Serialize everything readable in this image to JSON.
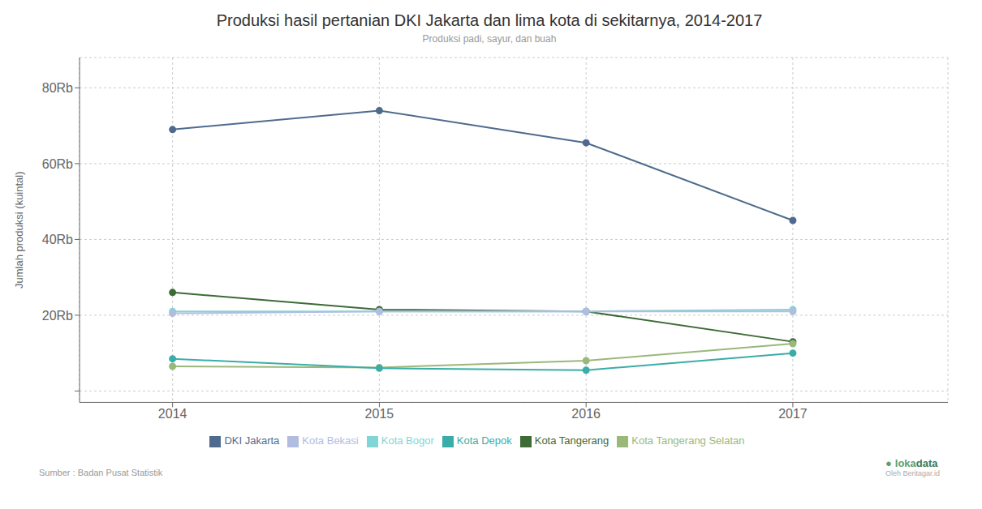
{
  "chart_data": {
    "type": "line",
    "title": "Produksi hasil pertanian DKI Jakarta dan lima kota di sekitarnya, 2014-2017",
    "subtitle": "Produksi padi, sayur, dan buah",
    "y_label": "Jumlah produksi (kuintal)",
    "annotations": [
      "Sumber : Badan Pusat Statistik",
      "●",
      "loka",
      "data",
      "Oleh Beritagar.id"
    ],
    "x": [
      2014,
      2015,
      2016,
      2017
    ],
    "series": [
      {
        "name": "DKI Jakarta",
        "color": "#4e6b8e",
        "values": [
          69000,
          74000,
          65500,
          45000
        ]
      },
      {
        "name": "Kota Tangerang",
        "color": "#3d6b36",
        "values": [
          26000,
          21500,
          21000,
          13000
        ]
      },
      {
        "name": "Kota Tangerang Selatan",
        "color": "#9ab87a",
        "values": [
          6500,
          6200,
          8000,
          12500
        ]
      },
      {
        "name": "Kota Depok",
        "color": "#3aada8",
        "values": [
          8500,
          6000,
          5500,
          10000
        ]
      },
      {
        "name": "Kota Bogor",
        "color": "#7fd6d4",
        "values": [
          21000,
          21000,
          21000,
          21500
        ]
      },
      {
        "name": "Kota Bekasi",
        "color": "#b0bde0",
        "values": [
          20500,
          21000,
          21000,
          21000
        ]
      }
    ],
    "xlim": [
      2013.55,
      2017.75
    ],
    "xticks": [
      2014,
      2015,
      2016,
      2017
    ],
    "ylim": [
      -3000,
      88000
    ],
    "yticks": [
      {
        "value": 0,
        "label": ""
      },
      {
        "value": 20000,
        "label": "20Rb"
      },
      {
        "value": 40000,
        "label": "40Rb"
      },
      {
        "value": 60000,
        "label": "60Rb"
      },
      {
        "value": 80000,
        "label": "80Rb"
      }
    ],
    "grid": true,
    "legend": "bottom",
    "marker": "circle"
  }
}
